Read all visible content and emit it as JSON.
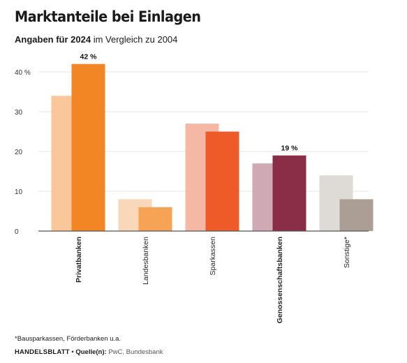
{
  "title": "Marktanteile bei Einlagen",
  "subtitle": {
    "bold": "Angaben für 2024",
    "rest": " im Vergleich zu 2004"
  },
  "footnote": "*Bausparkassen, Förderbanken u.a.",
  "source": {
    "brand": "HANDELSBLATT",
    "sep": " • ",
    "label": "Quelle(n):",
    "text": " PwC, Bundesbank"
  },
  "chart_data": {
    "type": "bar",
    "categories": [
      "Privatbanken",
      "Landesbanken",
      "Sparkassen",
      "Genossenschaftsbanken",
      "Sonstige*"
    ],
    "series": [
      {
        "values": [
          34,
          8,
          27,
          17,
          14
        ],
        "colors": [
          "#f9c79a",
          "#f8d8b8",
          "#f4b8a4",
          "#cfaab5",
          "#dedad6"
        ]
      },
      {
        "values": [
          42,
          6,
          25,
          19,
          8
        ],
        "colors": [
          "#f28524",
          "#f7a356",
          "#ef5a29",
          "#8a2d47",
          "#ab9f95"
        ]
      }
    ],
    "data_labels": [
      {
        "category": "Privatbanken",
        "text": "42 %"
      },
      {
        "category": "Genossenschaftsbanken",
        "text": "19 %"
      }
    ],
    "yticks": [
      {
        "value": 0,
        "label": "0"
      },
      {
        "value": 10,
        "label": "10"
      },
      {
        "value": 20,
        "label": "20"
      },
      {
        "value": 30,
        "label": "30"
      },
      {
        "value": 40,
        "label": "40 %"
      }
    ],
    "bold_categories": [
      "Privatbanken",
      "Genossenschaftsbanken"
    ],
    "ylim": [
      0,
      40
    ],
    "grid": true
  }
}
